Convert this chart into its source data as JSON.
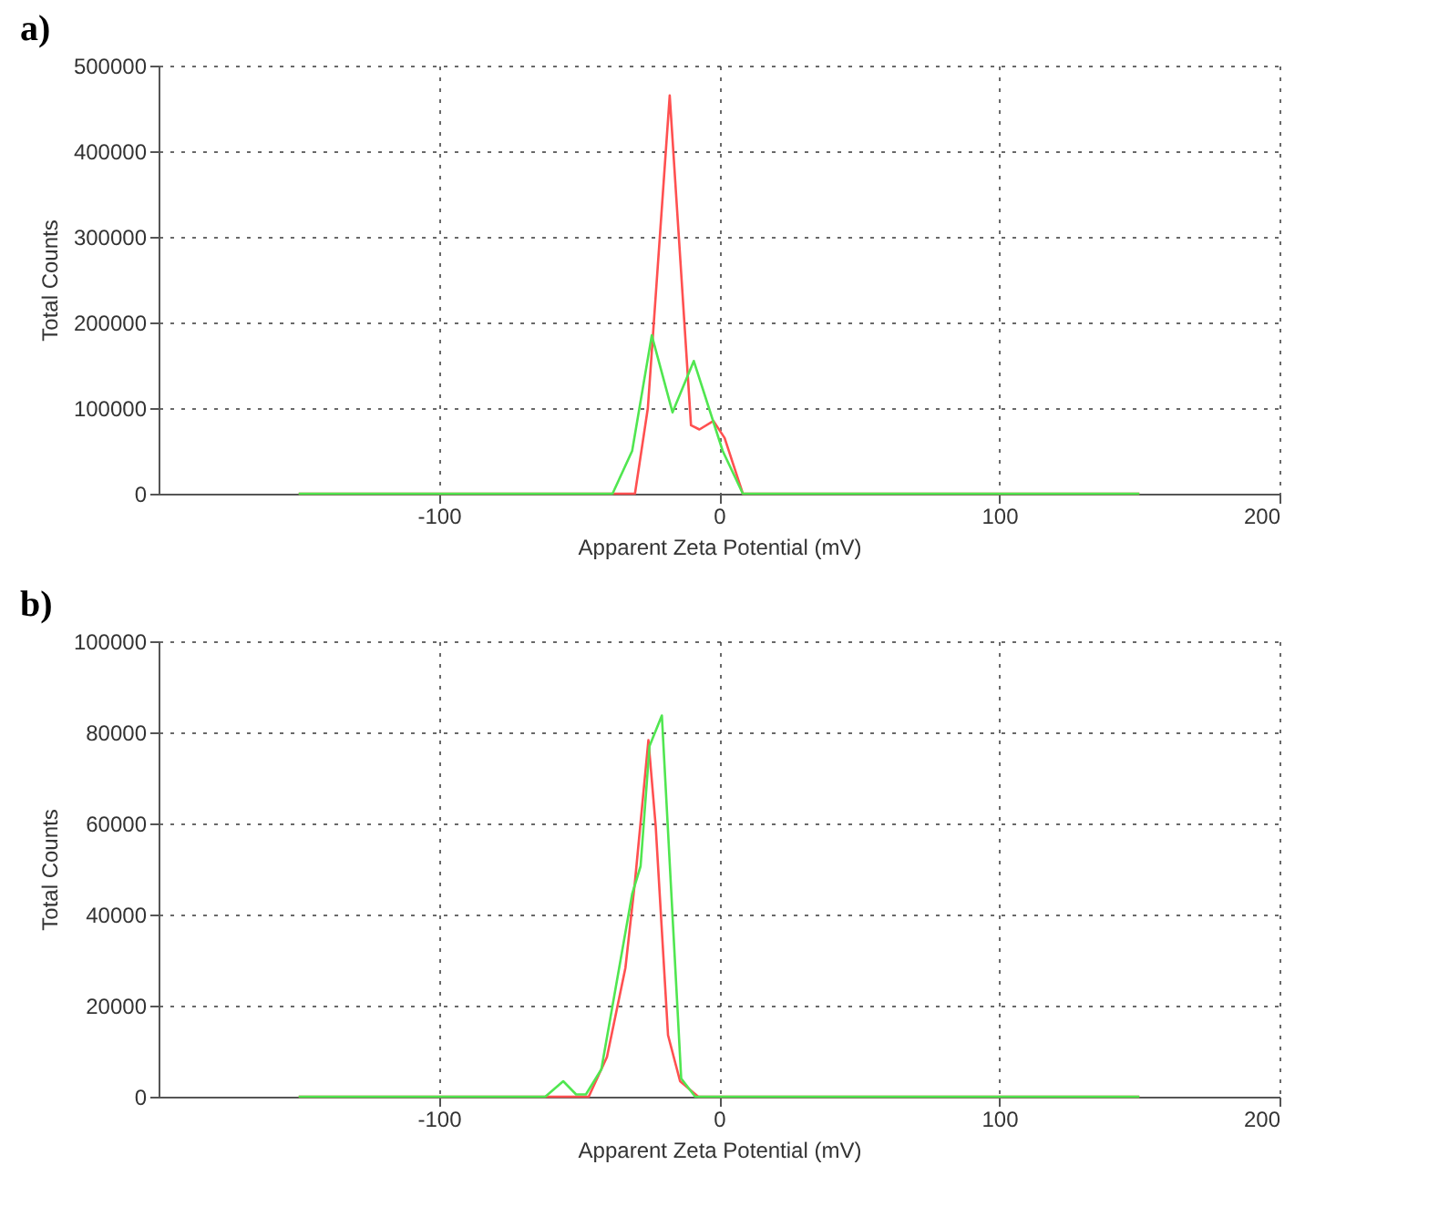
{
  "chart_data": [
    {
      "type": "line",
      "title": "a)",
      "xlabel": "Apparent Zeta Potential (mV)",
      "ylabel": "Total Counts",
      "xlim": [
        -200,
        200
      ],
      "xticks": [
        -100,
        0,
        100,
        200
      ],
      "ylim": [
        0,
        500000
      ],
      "yticks": [
        0,
        100000,
        200000,
        300000,
        400000,
        500000
      ],
      "grid": true,
      "line_style": "solid",
      "series": [
        {
          "color": "#ff5050",
          "x": [
            -150,
            -30,
            -25.4,
            -17.6,
            -10,
            -7,
            -2,
            2,
            8.5,
            150
          ],
          "values": [
            0,
            0,
            100000,
            465000,
            80000,
            75000,
            85000,
            65000,
            0,
            0
          ]
        },
        {
          "color": "#50e650",
          "x": [
            -150,
            -38,
            -31,
            -24,
            -16.6,
            -9,
            -3.6,
            1.3,
            8.5,
            150
          ],
          "values": [
            0,
            0,
            50000,
            185000,
            95000,
            155000,
            100000,
            50000,
            0,
            0
          ]
        }
      ]
    },
    {
      "type": "line",
      "title": "b)",
      "xlabel": "Apparent Zeta Potential (mV)",
      "ylabel": "Total Counts",
      "xlim": [
        -200,
        200
      ],
      "xticks": [
        -100,
        0,
        100,
        200
      ],
      "ylim": [
        0,
        100000
      ],
      "yticks": [
        0,
        20000,
        40000,
        60000,
        80000,
        100000
      ],
      "grid": true,
      "line_style": "solid",
      "series": [
        {
          "color": "#ff5050",
          "x": [
            -150,
            -46.5,
            -40,
            -33.4,
            -30,
            -25.2,
            -22.6,
            -18.2,
            -13.9,
            -7.4,
            150
          ],
          "values": [
            0,
            0,
            8700,
            28300,
            47200,
            78300,
            59400,
            13500,
            3400,
            0,
            0
          ]
        },
        {
          "color": "#50e650",
          "x": [
            -150,
            -62,
            -55.6,
            -51,
            -47.5,
            -42,
            -31,
            -28,
            -24.8,
            -20.4,
            -13.5,
            -8.5,
            150
          ],
          "values": [
            0,
            0,
            3400,
            500,
            500,
            6000,
            44500,
            50600,
            77000,
            83700,
            4000,
            0,
            0
          ]
        }
      ]
    }
  ]
}
